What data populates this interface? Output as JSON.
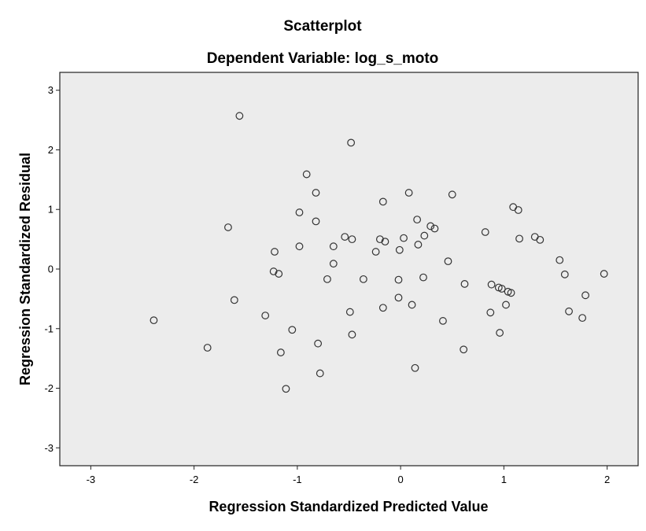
{
  "chart_data": {
    "type": "scatter",
    "title": "Scatterplot",
    "subtitle": "Dependent Variable: log_s_moto",
    "xlabel": "Regression Standardized Predicted Value",
    "ylabel": "Regression Standardized Residual",
    "xlim": [
      -3.3,
      2.3
    ],
    "ylim": [
      -3.3,
      3.3
    ],
    "xticks": [
      -3,
      -2,
      -1,
      0,
      1,
      2
    ],
    "yticks": [
      -3,
      -2,
      -1,
      0,
      1,
      2,
      3
    ],
    "xtick_labels": [
      "-3",
      "-2",
      "-1",
      "0",
      "1",
      "2"
    ],
    "ytick_labels": [
      "-3",
      "-2",
      "-1",
      "0",
      "1",
      "2",
      "3"
    ],
    "grid": false,
    "colors": {
      "plot_background": "#ececec",
      "marker_stroke": "#333333",
      "frame": "#222222"
    },
    "points": [
      {
        "x": -2.39,
        "y": -0.86
      },
      {
        "x": -1.87,
        "y": -1.32
      },
      {
        "x": -1.67,
        "y": 0.7
      },
      {
        "x": -1.61,
        "y": -0.52
      },
      {
        "x": -1.56,
        "y": 2.57
      },
      {
        "x": -1.31,
        "y": -0.78
      },
      {
        "x": -1.23,
        "y": -0.04
      },
      {
        "x": -1.22,
        "y": 0.29
      },
      {
        "x": -1.18,
        "y": -0.08
      },
      {
        "x": -1.16,
        "y": -1.4
      },
      {
        "x": -1.11,
        "y": -2.01
      },
      {
        "x": -1.05,
        "y": -1.02
      },
      {
        "x": -0.98,
        "y": 0.95
      },
      {
        "x": -0.98,
        "y": 0.38
      },
      {
        "x": -0.91,
        "y": 1.59
      },
      {
        "x": -0.82,
        "y": 1.28
      },
      {
        "x": -0.82,
        "y": 0.8
      },
      {
        "x": -0.8,
        "y": -1.25
      },
      {
        "x": -0.78,
        "y": -1.75
      },
      {
        "x": -0.71,
        "y": -0.17
      },
      {
        "x": -0.65,
        "y": 0.38
      },
      {
        "x": -0.65,
        "y": 0.09
      },
      {
        "x": -0.54,
        "y": 0.54
      },
      {
        "x": -0.49,
        "y": -0.72
      },
      {
        "x": -0.48,
        "y": 2.12
      },
      {
        "x": -0.47,
        "y": 0.5
      },
      {
        "x": -0.47,
        "y": -1.1
      },
      {
        "x": -0.36,
        "y": -0.17
      },
      {
        "x": -0.24,
        "y": 0.29
      },
      {
        "x": -0.2,
        "y": 0.5
      },
      {
        "x": -0.17,
        "y": 1.13
      },
      {
        "x": -0.17,
        "y": -0.65
      },
      {
        "x": -0.15,
        "y": 0.46
      },
      {
        "x": -0.02,
        "y": -0.18
      },
      {
        "x": -0.02,
        "y": -0.48
      },
      {
        "x": -0.01,
        "y": 0.32
      },
      {
        "x": 0.03,
        "y": 0.52
      },
      {
        "x": 0.08,
        "y": 1.28
      },
      {
        "x": 0.11,
        "y": -0.6
      },
      {
        "x": 0.14,
        "y": -1.66
      },
      {
        "x": 0.16,
        "y": 0.83
      },
      {
        "x": 0.17,
        "y": 0.41
      },
      {
        "x": 0.22,
        "y": -0.14
      },
      {
        "x": 0.23,
        "y": 0.56
      },
      {
        "x": 0.29,
        "y": 0.72
      },
      {
        "x": 0.33,
        "y": 0.68
      },
      {
        "x": 0.41,
        "y": -0.87
      },
      {
        "x": 0.46,
        "y": 0.13
      },
      {
        "x": 0.5,
        "y": 1.25
      },
      {
        "x": 0.61,
        "y": -1.35
      },
      {
        "x": 0.62,
        "y": -0.25
      },
      {
        "x": 0.82,
        "y": 0.62
      },
      {
        "x": 0.87,
        "y": -0.73
      },
      {
        "x": 0.88,
        "y": -0.26
      },
      {
        "x": 0.95,
        "y": -0.31
      },
      {
        "x": 0.96,
        "y": -1.07
      },
      {
        "x": 0.98,
        "y": -0.33
      },
      {
        "x": 1.02,
        "y": -0.6
      },
      {
        "x": 1.04,
        "y": -0.38
      },
      {
        "x": 1.07,
        "y": -0.4
      },
      {
        "x": 1.09,
        "y": 1.04
      },
      {
        "x": 1.14,
        "y": 0.99
      },
      {
        "x": 1.15,
        "y": 0.51
      },
      {
        "x": 1.3,
        "y": 0.54
      },
      {
        "x": 1.35,
        "y": 0.49
      },
      {
        "x": 1.54,
        "y": 0.15
      },
      {
        "x": 1.59,
        "y": -0.09
      },
      {
        "x": 1.63,
        "y": -0.71
      },
      {
        "x": 1.76,
        "y": -0.82
      },
      {
        "x": 1.79,
        "y": -0.44
      },
      {
        "x": 1.97,
        "y": -0.08
      }
    ]
  }
}
